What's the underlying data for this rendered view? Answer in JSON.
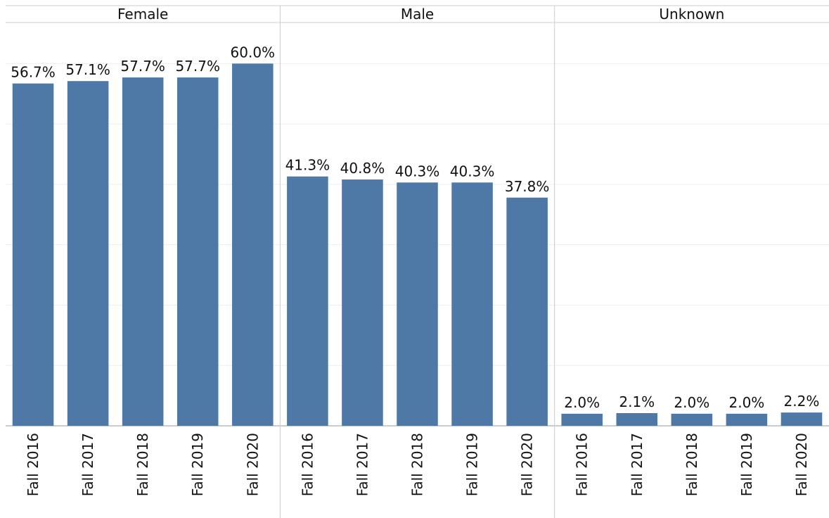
{
  "chart_data": {
    "type": "bar",
    "categories": [
      "Fall 2016",
      "Fall 2017",
      "Fall 2018",
      "Fall 2019",
      "Fall 2020"
    ],
    "color": "#4e79a7",
    "ylim": [
      0,
      66.8
    ],
    "yticks": [
      0,
      10,
      20,
      30,
      40,
      50,
      60
    ],
    "grid": true,
    "series": [
      {
        "name": "Female",
        "values": [
          56.7,
          57.1,
          57.7,
          57.7,
          60.0
        ],
        "value_labels": [
          "56.7%",
          "57.1%",
          "57.7%",
          "57.7%",
          "60.0%"
        ]
      },
      {
        "name": "Male",
        "values": [
          41.3,
          40.8,
          40.3,
          40.3,
          37.8
        ],
        "value_labels": [
          "41.3%",
          "40.8%",
          "40.3%",
          "40.3%",
          "37.8%"
        ]
      },
      {
        "name": "Unknown",
        "values": [
          2.0,
          2.1,
          2.0,
          2.0,
          2.2
        ],
        "value_labels": [
          "2.0%",
          "2.1%",
          "2.0%",
          "2.0%",
          "2.2%"
        ]
      }
    ]
  }
}
